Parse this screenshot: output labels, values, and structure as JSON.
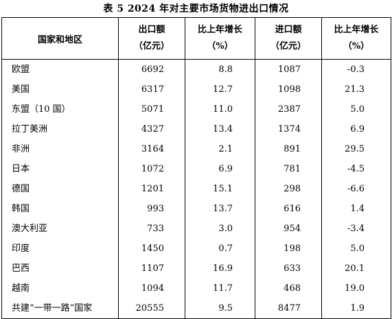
{
  "title": "表 5   2024 年对主要市场货物进出口情况",
  "headers": {
    "region": "国家和地区",
    "export_line1": "出口额",
    "export_line2": "（亿元）",
    "export_growth_line1": "比上年增长",
    "export_growth_line2": "（%）",
    "import_line1": "进口额",
    "import_line2": "（亿元）",
    "import_growth_line1": "比上年增长",
    "import_growth_line2": "（%）"
  },
  "rows": [
    {
      "region": "欧盟",
      "export": "6692",
      "export_growth": "8.8",
      "import": "1087",
      "import_growth": "-0.3"
    },
    {
      "region": "美国",
      "export": "6317",
      "export_growth": "12.7",
      "import": "1098",
      "import_growth": "21.3"
    },
    {
      "region": "东盟（10 国）",
      "export": "5071",
      "export_growth": "11.0",
      "import": "2387",
      "import_growth": "5.0"
    },
    {
      "region": "拉丁美洲",
      "export": "4327",
      "export_growth": "13.4",
      "import": "1374",
      "import_growth": "6.9"
    },
    {
      "region": "非洲",
      "export": "3164",
      "export_growth": "2.1",
      "import": "891",
      "import_growth": "29.5"
    },
    {
      "region": "日本",
      "export": "1072",
      "export_growth": "6.9",
      "import": "781",
      "import_growth": "-4.5"
    },
    {
      "region": "德国",
      "export": "1201",
      "export_growth": "15.1",
      "import": "298",
      "import_growth": "-6.6"
    },
    {
      "region": "韩国",
      "export": "993",
      "export_growth": "13.7",
      "import": "616",
      "import_growth": "1.4"
    },
    {
      "region": "澳大利亚",
      "export": "733",
      "export_growth": "3.0",
      "import": "954",
      "import_growth": "-3.4"
    },
    {
      "region": "印度",
      "export": "1450",
      "export_growth": "0.7",
      "import": "198",
      "import_growth": "5.0"
    },
    {
      "region": "巴西",
      "export": "1107",
      "export_growth": "16.9",
      "import": "633",
      "import_growth": "20.1"
    },
    {
      "region": "越南",
      "export": "1094",
      "export_growth": "11.7",
      "import": "468",
      "import_growth": "19.0"
    },
    {
      "region": "共建“一带一路”国家",
      "export": "20555",
      "export_growth": "9.5",
      "import": "8477",
      "import_growth": "1.9"
    }
  ]
}
